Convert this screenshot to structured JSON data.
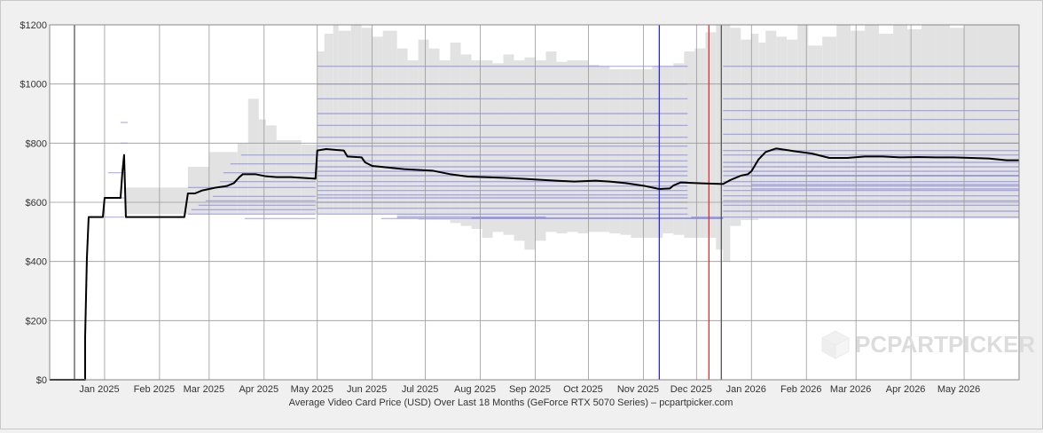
{
  "chart_data": {
    "type": "line",
    "caption": "Average Video Card Price (USD) Over Last 18 Months (GeForce RTX 5070 Series) – pcpartpicker.com",
    "watermark": "PCPARTPICKER",
    "x_unit": "days since 2024-12-19",
    "ylim": [
      0,
      1200
    ],
    "y_ticks": [
      {
        "value": 0,
        "label": "$0"
      },
      {
        "value": 200,
        "label": "$200"
      },
      {
        "value": 400,
        "label": "$400"
      },
      {
        "value": 600,
        "label": "$600"
      },
      {
        "value": 800,
        "label": "$800"
      },
      {
        "value": 1000,
        "label": "$1000"
      },
      {
        "value": 1200,
        "label": "$1200"
      }
    ],
    "x_ticks": [
      {
        "x": 28,
        "label": "Jan 2025"
      },
      {
        "x": 59,
        "label": "Feb 2025"
      },
      {
        "x": 87,
        "label": "Mar 2025"
      },
      {
        "x": 118,
        "label": "Apr 2025"
      },
      {
        "x": 148,
        "label": "May 2025"
      },
      {
        "x": 179,
        "label": "Jun 2025"
      },
      {
        "x": 209,
        "label": "Jul 2025"
      },
      {
        "x": 240,
        "label": "Aug 2025"
      },
      {
        "x": 271,
        "label": "Sep 2025"
      },
      {
        "x": 301,
        "label": "Oct 2025"
      },
      {
        "x": 332,
        "label": "Nov 2025"
      },
      {
        "x": 362,
        "label": "Dec 2025"
      },
      {
        "x": 393,
        "label": "Jan 2026"
      },
      {
        "x": 424,
        "label": "Feb 2026"
      },
      {
        "x": 452,
        "label": "Mar 2026"
      },
      {
        "x": 483,
        "label": "Apr 2026"
      },
      {
        "x": 513,
        "label": "May 2026"
      }
    ],
    "gridlines_x": [
      0,
      31,
      62,
      90,
      121,
      151,
      182,
      212,
      243,
      274,
      304,
      335,
      365,
      396,
      427,
      455,
      486,
      516,
      547
    ],
    "markers": [
      {
        "x": 14,
        "color": "#555555"
      },
      {
        "x": 344,
        "color": "#2a2ad4"
      },
      {
        "x": 372,
        "color": "#e03030"
      },
      {
        "x": 379,
        "color": "#555555"
      }
    ],
    "colors": {
      "line": "#000000",
      "range_fill": "#e2e2e2",
      "price_ticks": "#4a4ae0",
      "grid": "#999999",
      "plot_bg": "#ffffff"
    },
    "avg_price": [
      [
        0,
        0
      ],
      [
        20,
        0
      ],
      [
        20,
        140
      ],
      [
        21,
        410
      ],
      [
        22,
        550
      ],
      [
        30,
        550
      ],
      [
        31,
        615
      ],
      [
        40,
        615
      ],
      [
        41,
        700
      ],
      [
        42,
        760
      ],
      [
        43,
        550
      ],
      [
        76,
        550
      ],
      [
        78,
        630
      ],
      [
        82,
        630
      ],
      [
        86,
        640
      ],
      [
        90,
        645
      ],
      [
        94,
        650
      ],
      [
        100,
        655
      ],
      [
        104,
        665
      ],
      [
        107,
        685
      ],
      [
        109,
        695
      ],
      [
        116,
        695
      ],
      [
        122,
        688
      ],
      [
        128,
        685
      ],
      [
        136,
        685
      ],
      [
        150,
        680
      ],
      [
        151,
        775
      ],
      [
        156,
        780
      ],
      [
        166,
        775
      ],
      [
        168,
        755
      ],
      [
        176,
        752
      ],
      [
        178,
        735
      ],
      [
        182,
        723
      ],
      [
        192,
        717
      ],
      [
        200,
        712
      ],
      [
        216,
        707
      ],
      [
        226,
        695
      ],
      [
        236,
        687
      ],
      [
        256,
        683
      ],
      [
        266,
        680
      ],
      [
        280,
        675
      ],
      [
        296,
        670
      ],
      [
        308,
        673
      ],
      [
        316,
        670
      ],
      [
        325,
        665
      ],
      [
        336,
        655
      ],
      [
        344,
        645
      ],
      [
        350,
        647
      ],
      [
        352,
        657
      ],
      [
        356,
        667
      ],
      [
        368,
        664
      ],
      [
        380,
        662
      ],
      [
        384,
        675
      ],
      [
        390,
        690
      ],
      [
        394,
        695
      ],
      [
        396,
        705
      ],
      [
        400,
        745
      ],
      [
        404,
        770
      ],
      [
        410,
        782
      ],
      [
        420,
        773
      ],
      [
        430,
        765
      ],
      [
        440,
        750
      ],
      [
        450,
        750
      ],
      [
        460,
        755
      ],
      [
        470,
        755
      ],
      [
        480,
        752
      ],
      [
        490,
        753
      ],
      [
        500,
        752
      ],
      [
        510,
        752
      ],
      [
        520,
        750
      ],
      [
        530,
        748
      ],
      [
        540,
        742
      ],
      [
        547,
        742
      ]
    ],
    "price_range": [
      [
        43,
        560,
        650
      ],
      [
        78,
        560,
        720
      ],
      [
        90,
        560,
        770
      ],
      [
        106,
        560,
        800
      ],
      [
        112,
        560,
        950
      ],
      [
        118,
        560,
        880
      ],
      [
        122,
        560,
        860
      ],
      [
        128,
        560,
        810
      ],
      [
        142,
        560,
        795
      ],
      [
        151,
        560,
        1110
      ],
      [
        155,
        560,
        1170
      ],
      [
        160,
        560,
        1200
      ],
      [
        163,
        560,
        1180
      ],
      [
        170,
        560,
        1200
      ],
      [
        176,
        560,
        1190
      ],
      [
        182,
        560,
        1160
      ],
      [
        188,
        560,
        1180
      ],
      [
        196,
        545,
        1120
      ],
      [
        202,
        545,
        1080
      ],
      [
        208,
        540,
        1150
      ],
      [
        214,
        540,
        1120
      ],
      [
        220,
        540,
        1080
      ],
      [
        226,
        530,
        1140
      ],
      [
        232,
        520,
        1100
      ],
      [
        238,
        510,
        1080
      ],
      [
        244,
        480,
        1080
      ],
      [
        250,
        500,
        1070
      ],
      [
        256,
        490,
        1100
      ],
      [
        262,
        470,
        1080
      ],
      [
        268,
        440,
        1090
      ],
      [
        274,
        470,
        1080
      ],
      [
        280,
        500,
        1110
      ],
      [
        286,
        495,
        1075
      ],
      [
        292,
        500,
        1080
      ],
      [
        298,
        495,
        1080
      ],
      [
        304,
        500,
        1065
      ],
      [
        310,
        500,
        1060
      ],
      [
        316,
        495,
        1050
      ],
      [
        322,
        490,
        1050
      ],
      [
        328,
        480,
        1050
      ],
      [
        334,
        480,
        1050
      ],
      [
        340,
        480,
        1060
      ],
      [
        346,
        495,
        1060
      ],
      [
        352,
        490,
        1070
      ],
      [
        358,
        480,
        1110
      ],
      [
        364,
        480,
        1120
      ],
      [
        370,
        480,
        1175
      ],
      [
        376,
        440,
        1200
      ],
      [
        380,
        400,
        1200
      ],
      [
        384,
        520,
        1190
      ],
      [
        390,
        540,
        1150
      ],
      [
        396,
        540,
        1170
      ],
      [
        400,
        545,
        1140
      ],
      [
        404,
        545,
        1180
      ],
      [
        410,
        545,
        1160
      ],
      [
        416,
        545,
        1150
      ],
      [
        422,
        545,
        1200
      ],
      [
        428,
        545,
        1130
      ],
      [
        436,
        545,
        1160
      ],
      [
        444,
        545,
        1200
      ],
      [
        452,
        545,
        1180
      ],
      [
        460,
        545,
        1200
      ],
      [
        468,
        545,
        1170
      ],
      [
        476,
        545,
        1200
      ],
      [
        484,
        545,
        1185
      ],
      [
        492,
        545,
        1200
      ],
      [
        500,
        545,
        1200
      ],
      [
        508,
        545,
        1190
      ],
      [
        516,
        545,
        1200
      ],
      [
        524,
        545,
        1200
      ],
      [
        532,
        545,
        1200
      ],
      [
        540,
        545,
        1200
      ],
      [
        547,
        545,
        1200
      ]
    ],
    "price_ticks": [
      [
        31,
        42,
        550
      ],
      [
        31,
        42,
        615
      ],
      [
        33,
        43,
        700
      ],
      [
        40,
        44,
        870
      ],
      [
        40,
        44,
        800
      ],
      [
        78,
        150,
        560
      ],
      [
        80,
        150,
        575
      ],
      [
        84,
        150,
        590
      ],
      [
        88,
        150,
        605
      ],
      [
        92,
        150,
        620
      ],
      [
        78,
        150,
        650
      ],
      [
        96,
        150,
        670
      ],
      [
        98,
        150,
        700
      ],
      [
        102,
        150,
        730
      ],
      [
        108,
        150,
        760
      ],
      [
        110,
        150,
        545
      ],
      [
        151,
        360,
        560
      ],
      [
        151,
        360,
        580
      ],
      [
        151,
        360,
        600
      ],
      [
        151,
        360,
        615
      ],
      [
        151,
        360,
        625
      ],
      [
        151,
        360,
        640
      ],
      [
        151,
        360,
        655
      ],
      [
        151,
        360,
        670
      ],
      [
        151,
        360,
        690
      ],
      [
        151,
        360,
        705
      ],
      [
        151,
        360,
        720
      ],
      [
        151,
        360,
        740
      ],
      [
        151,
        360,
        760
      ],
      [
        151,
        360,
        790
      ],
      [
        151,
        360,
        820
      ],
      [
        151,
        360,
        860
      ],
      [
        151,
        360,
        900
      ],
      [
        151,
        360,
        950
      ],
      [
        151,
        360,
        1000
      ],
      [
        151,
        360,
        1060
      ],
      [
        187,
        380,
        545
      ],
      [
        196,
        280,
        550
      ],
      [
        238,
        380,
        547
      ],
      [
        362,
        547,
        550
      ],
      [
        380,
        547,
        570
      ],
      [
        380,
        547,
        590
      ],
      [
        380,
        547,
        605
      ],
      [
        380,
        547,
        622
      ],
      [
        380,
        547,
        640
      ],
      [
        380,
        547,
        655
      ],
      [
        380,
        547,
        670
      ],
      [
        380,
        547,
        690
      ],
      [
        380,
        547,
        705
      ],
      [
        380,
        547,
        720
      ],
      [
        380,
        547,
        735
      ],
      [
        380,
        547,
        760
      ],
      [
        380,
        547,
        775
      ],
      [
        380,
        547,
        800
      ],
      [
        380,
        547,
        830
      ],
      [
        380,
        547,
        880
      ],
      [
        380,
        547,
        910
      ],
      [
        380,
        547,
        950
      ],
      [
        380,
        547,
        1000
      ],
      [
        380,
        547,
        1060
      ],
      [
        396,
        547,
        645
      ],
      [
        396,
        547,
        660
      ],
      [
        396,
        547,
        690
      ]
    ]
  }
}
